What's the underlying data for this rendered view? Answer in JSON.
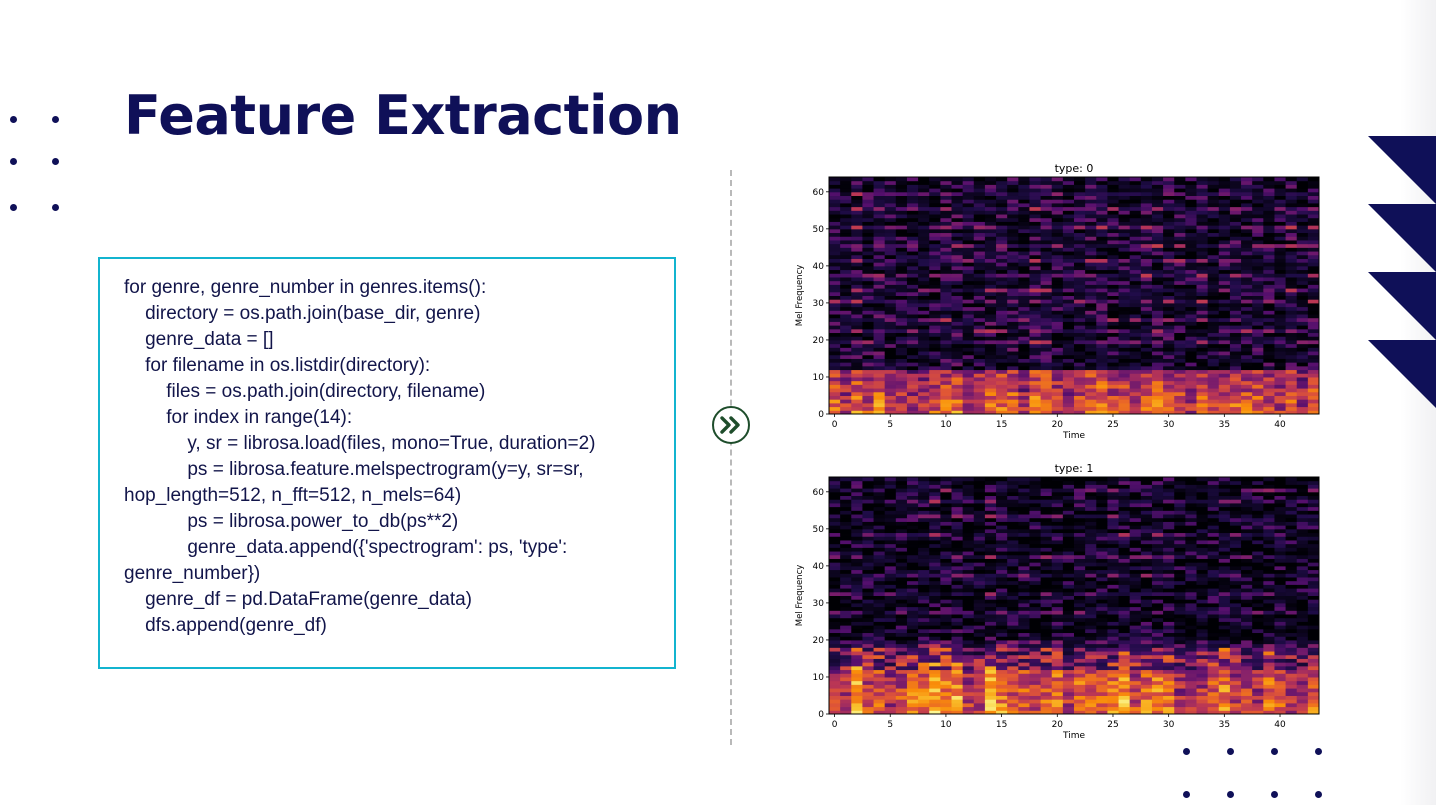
{
  "slide": {
    "title": "Feature Extraction"
  },
  "code": {
    "lines": [
      "for genre, genre_number in genres.items():",
      "    directory = os.path.join(base_dir, genre)",
      "    genre_data = []",
      "    for filename in os.listdir(directory):",
      "        files = os.path.join(directory, filename)",
      "        for index in range(14):",
      "            y, sr = librosa.load(files, mono=True, duration=2)",
      "            ps = librosa.feature.melspectrogram(y=y, sr=sr,",
      "hop_length=512, n_fft=512, n_mels=64)",
      "            ps = librosa.power_to_db(ps**2)",
      "            genre_data.append({'spectrogram': ps, 'type':",
      "genre_number})",
      "    genre_df = pd.DataFrame(genre_data)",
      "    dfs.append(genre_df)"
    ]
  },
  "arrow_icon": "double-chevron-right-icon",
  "colors": {
    "title": "#0f1058",
    "code_border": "#13b4cf",
    "code_text": "#12154a",
    "arrow_border": "#1e4d2b",
    "decor_navy": "#0f1058"
  },
  "chart_data": [
    {
      "type": "heatmap",
      "title": "type: 0",
      "xlabel": "Time",
      "ylabel": "Mel Frequency",
      "x_ticks": [
        0,
        5,
        10,
        15,
        20,
        25,
        30,
        35,
        40
      ],
      "y_ticks": [
        0,
        10,
        20,
        30,
        40,
        50,
        60
      ],
      "xlim": [
        0,
        44
      ],
      "ylim": [
        0,
        64
      ],
      "colormap": "inferno"
    },
    {
      "type": "heatmap",
      "title": "type: 1",
      "xlabel": "Time",
      "ylabel": "Mel Frequency",
      "x_ticks": [
        0,
        5,
        10,
        15,
        20,
        25,
        30,
        35,
        40
      ],
      "y_ticks": [
        0,
        10,
        20,
        30,
        40,
        50,
        60
      ],
      "xlim": [
        0,
        44
      ],
      "ylim": [
        0,
        64
      ],
      "colormap": "inferno"
    }
  ]
}
